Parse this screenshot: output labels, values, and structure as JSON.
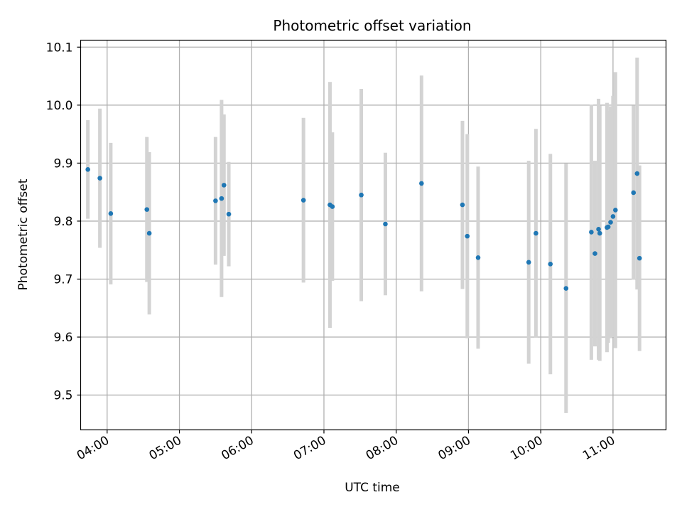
{
  "chart_data": {
    "type": "scatter",
    "title": "Photometric offset variation",
    "xlabel": "UTC time",
    "ylabel": "Photometric offset",
    "x_is_time": true,
    "xlim": [
      "03:38",
      "11:44"
    ],
    "ylim": [
      9.44,
      10.112
    ],
    "grid": true,
    "x_ticks": [
      "04:00",
      "05:00",
      "06:00",
      "07:00",
      "08:00",
      "09:00",
      "10:00",
      "11:00"
    ],
    "y_ticks": [
      9.5,
      9.6,
      9.7,
      9.8,
      9.9,
      10.0,
      10.1
    ],
    "y_tick_labels": [
      "9.5",
      "9.6",
      "9.7",
      "9.8",
      "9.9",
      "10.0",
      "10.1"
    ],
    "colors": {
      "point": "#1f77b4",
      "errorbar": "#d3d3d3",
      "grid": "#b0b0b0"
    },
    "points": [
      {
        "x": "03:44",
        "y": 9.889,
        "err": 0.085
      },
      {
        "x": "03:54",
        "y": 9.874,
        "err": 0.12
      },
      {
        "x": "04:03",
        "y": 9.813,
        "err": 0.122
      },
      {
        "x": "04:33",
        "y": 9.82,
        "err": 0.125
      },
      {
        "x": "04:35",
        "y": 9.779,
        "err": 0.14
      },
      {
        "x": "05:30",
        "y": 9.835,
        "err": 0.11
      },
      {
        "x": "05:35",
        "y": 9.839,
        "err": 0.17
      },
      {
        "x": "05:37",
        "y": 9.862,
        "err": 0.122
      },
      {
        "x": "05:41",
        "y": 9.812,
        "err": 0.09
      },
      {
        "x": "06:43",
        "y": 9.836,
        "err": 0.142
      },
      {
        "x": "07:05",
        "y": 9.828,
        "err": 0.212
      },
      {
        "x": "07:07",
        "y": 9.825,
        "err": 0.128
      },
      {
        "x": "07:31",
        "y": 9.845,
        "err": 0.183
      },
      {
        "x": "07:51",
        "y": 9.795,
        "err": 0.123
      },
      {
        "x": "08:21",
        "y": 9.865,
        "err": 0.186
      },
      {
        "x": "08:55",
        "y": 9.828,
        "err": 0.145
      },
      {
        "x": "08:59",
        "y": 9.774,
        "err": 0.176
      },
      {
        "x": "09:08",
        "y": 9.737,
        "err": 0.157
      },
      {
        "x": "09:50",
        "y": 9.729,
        "err": 0.175
      },
      {
        "x": "09:56",
        "y": 9.779,
        "err": 0.18
      },
      {
        "x": "10:08",
        "y": 9.726,
        "err": 0.19
      },
      {
        "x": "10:21",
        "y": 9.684,
        "err": 0.215
      },
      {
        "x": "10:42",
        "y": 9.781,
        "err": 0.22
      },
      {
        "x": "10:45",
        "y": 9.744,
        "err": 0.16
      },
      {
        "x": "10:48",
        "y": 9.786,
        "err": 0.225
      },
      {
        "x": "10:49",
        "y": 9.779,
        "err": 0.22
      },
      {
        "x": "10:55",
        "y": 9.789,
        "err": 0.215
      },
      {
        "x": "10:56",
        "y": 9.79,
        "err": 0.2
      },
      {
        "x": "10:58",
        "y": 9.798,
        "err": 0.2
      },
      {
        "x": "11:00",
        "y": 9.808,
        "err": 0.208
      },
      {
        "x": "11:02",
        "y": 9.819,
        "err": 0.238
      },
      {
        "x": "11:17",
        "y": 9.849,
        "err": 0.15
      },
      {
        "x": "11:20",
        "y": 9.882,
        "err": 0.2
      },
      {
        "x": "11:22",
        "y": 9.736,
        "err": 0.16
      }
    ]
  }
}
